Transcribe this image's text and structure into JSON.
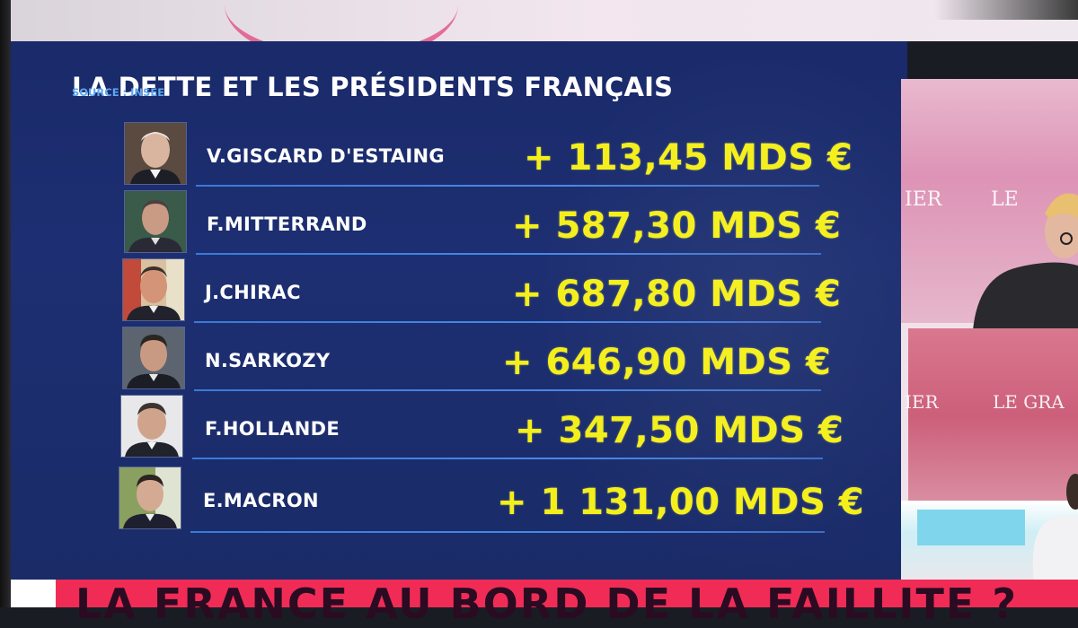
{
  "graphic": {
    "title": "LA DETTE ET LES PRÉSIDENTS FRANÇAIS",
    "source": "SOURCE : INSEE",
    "rows": [
      {
        "name": "V.GISCARD D'ESTAING",
        "value": "+ 113,45 MDS €"
      },
      {
        "name": "F.MITTERRAND",
        "value": "+ 587,30 MDS €"
      },
      {
        "name": "J.CHIRAC",
        "value": "+ 687,80 MDS €"
      },
      {
        "name": "N.SARKOZY",
        "value": "+ 646,90 MDS €"
      },
      {
        "name": "F.HOLLANDE",
        "value": "+ 347,50 MDS €"
      },
      {
        "name": "E.MACRON",
        "value": "+ 1 131,00 MDS €"
      }
    ]
  },
  "video": {
    "wall_text_top_left": "IER",
    "wall_text_top_right": "LE",
    "wall_text_bottom_left": "IER",
    "wall_text_bottom_right": "LE GRA"
  },
  "ticker": {
    "text": "LA FRANCE AU BORD DE LA FAILLITE ?"
  },
  "colors": {
    "panel_background": "#1d2f72",
    "title_text": "#ffffff",
    "source_text": "#5fa8f0",
    "value_text": "#f4ef1a",
    "separator": "#4a88e6",
    "ticker_background": "#f02c56"
  }
}
